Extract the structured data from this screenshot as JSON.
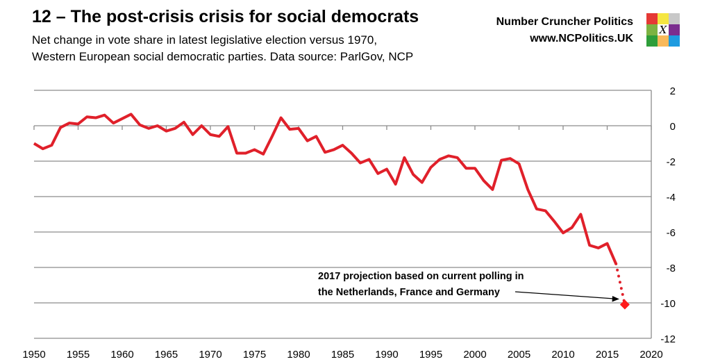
{
  "header": {
    "title": "12 – The post-crisis crisis for social democrats",
    "subtitle_line1": "Net change in vote share in latest legislative election versus 1970,",
    "subtitle_line2": "Western European social democratic parties. Data source: ParlGov, NCP",
    "brand_name": "Number Cruncher Politics",
    "brand_url": "www.NCPolitics.UK",
    "logo_letter": "X",
    "logo_colors": [
      "#e53935",
      "#f5e642",
      "#c8c8c8",
      "#7cb342",
      "#ffffff",
      "#7b2d8e",
      "#2e9e3a",
      "#f9b95a",
      "#1e9be0"
    ]
  },
  "chart_data": {
    "type": "line",
    "title": "",
    "xlabel": "",
    "ylabel": "",
    "xlim": [
      1950,
      2020
    ],
    "ylim": [
      -12,
      2
    ],
    "x_ticks": [
      1950,
      1955,
      1960,
      1965,
      1970,
      1975,
      1980,
      1985,
      1990,
      1995,
      2000,
      2005,
      2010,
      2015,
      2020
    ],
    "y_ticks": [
      2,
      0,
      -2,
      -4,
      -6,
      -8,
      -10,
      -12
    ],
    "y_axis_side": "right",
    "grid": "horizontal",
    "line_color": "#e0202a",
    "x": [
      1950,
      1951,
      1952,
      1953,
      1954,
      1955,
      1956,
      1957,
      1958,
      1959,
      1960,
      1961,
      1962,
      1963,
      1964,
      1965,
      1966,
      1967,
      1968,
      1969,
      1970,
      1971,
      1972,
      1973,
      1974,
      1975,
      1976,
      1977,
      1978,
      1979,
      1980,
      1981,
      1982,
      1983,
      1984,
      1985,
      1986,
      1987,
      1988,
      1989,
      1990,
      1991,
      1992,
      1993,
      1994,
      1995,
      1996,
      1997,
      1998,
      1999,
      2000,
      2001,
      2002,
      2003,
      2004,
      2005,
      2006,
      2007,
      2008,
      2009,
      2010,
      2011,
      2012,
      2013,
      2014,
      2015,
      2016
    ],
    "y": [
      -1.0,
      -1.3,
      -1.1,
      -0.1,
      0.15,
      0.1,
      0.5,
      0.45,
      0.6,
      0.15,
      0.4,
      0.65,
      0.05,
      -0.15,
      0,
      -0.3,
      -0.15,
      0.2,
      -0.5,
      0,
      -0.5,
      -0.6,
      -0.05,
      -1.55,
      -1.55,
      -1.35,
      -1.6,
      -0.6,
      0.45,
      -0.2,
      -0.15,
      -0.85,
      -0.6,
      -1.5,
      -1.35,
      -1.1,
      -1.55,
      -2.1,
      -1.9,
      -2.7,
      -2.45,
      -3.3,
      -1.8,
      -2.75,
      -3.2,
      -2.35,
      -1.9,
      -1.7,
      -1.8,
      -2.4,
      -2.4,
      -3.1,
      -3.6,
      -1.95,
      -1.85,
      -2.15,
      -3.6,
      -4.7,
      -4.8,
      -5.4,
      -6.05,
      -5.75,
      -5.0,
      -6.75,
      -6.9,
      -6.65,
      -7.8
    ],
    "projection": {
      "x": 2017,
      "y": -10.1
    },
    "annotation_line1": "2017 projection based on current polling in",
    "annotation_line2": "the Netherlands, France and Germany"
  }
}
